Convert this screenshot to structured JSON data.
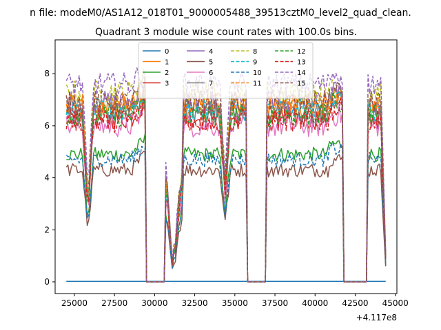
{
  "chart_data": {
    "type": "line",
    "suptitle": "n file: modeM0/AS1A12_018T01_9000005488_39513cztM0_level2_quad_clean.",
    "title": "Quadrant 3 module wise count rates with 100.0s bins.",
    "xlabel": "",
    "ylabel": "",
    "x_offset_label": "+4.117e8",
    "xlim": [
      23800,
      45100
    ],
    "ylim": [
      -0.45,
      9.3
    ],
    "x_ticks": [
      25000,
      27500,
      30000,
      32500,
      35000,
      37500,
      40000,
      42500,
      45000
    ],
    "x_tick_labels": [
      "25000",
      "27500",
      "30000",
      "32500",
      "35000",
      "37500",
      "40000",
      "42500",
      "45000"
    ],
    "y_ticks": [
      0,
      2,
      4,
      6,
      8
    ],
    "y_tick_labels": [
      "0",
      "2",
      "4",
      "6",
      "8"
    ],
    "grid": false,
    "legend_placement": "upper center, 4 columns",
    "gap_intervals": [
      [
        29450,
        30600
      ],
      [
        35750,
        36950
      ],
      [
        41750,
        43250
      ]
    ],
    "series": [
      {
        "name": "0",
        "color": "#1f77b4",
        "dash": "solid",
        "level": 0.02,
        "note_flat": true
      },
      {
        "name": "1",
        "color": "#ff7f0e",
        "dash": "solid",
        "level": 6.7
      },
      {
        "name": "2",
        "color": "#2ca02c",
        "dash": "solid",
        "level": 4.9
      },
      {
        "name": "3",
        "color": "#d62728",
        "dash": "solid",
        "level": 6.3
      },
      {
        "name": "4",
        "color": "#9467bd",
        "dash": "solid",
        "level": 6.9
      },
      {
        "name": "5",
        "color": "#8c564b",
        "dash": "solid",
        "level": 4.3
      },
      {
        "name": "6",
        "color": "#e377c2",
        "dash": "solid",
        "level": 6.0
      },
      {
        "name": "7",
        "color": "#7f7f7f",
        "dash": "solid",
        "level": 6.5
      },
      {
        "name": "8",
        "color": "#bcbd22",
        "dash": "dashed",
        "level": 7.3
      },
      {
        "name": "9",
        "color": "#17becf",
        "dash": "dashed",
        "level": 6.6
      },
      {
        "name": "10",
        "color": "#1f77b4",
        "dash": "dashed",
        "level": 4.7
      },
      {
        "name": "11",
        "color": "#ff7f0e",
        "dash": "dashed",
        "level": 6.8
      },
      {
        "name": "12",
        "color": "#2ca02c",
        "dash": "dashed",
        "level": 6.4
      },
      {
        "name": "13",
        "color": "#d62728",
        "dash": "dashed",
        "level": 6.2
      },
      {
        "name": "14",
        "color": "#9467bd",
        "dash": "dashed",
        "level": 7.6
      },
      {
        "name": "15",
        "color": "#8c564b",
        "dash": "dashed",
        "level": 6.9
      }
    ]
  }
}
